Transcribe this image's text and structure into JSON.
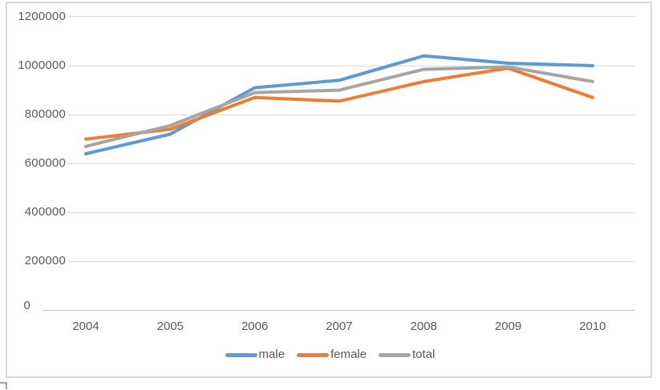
{
  "chart_data": {
    "type": "line",
    "title": "",
    "categories": [
      "2004",
      "2005",
      "2006",
      "2007",
      "2008",
      "2009",
      "2010"
    ],
    "series": [
      {
        "name": "male",
        "color": "#5B9BD5",
        "values": [
          640000,
          720000,
          910000,
          940000,
          1040000,
          1010000,
          1000000
        ]
      },
      {
        "name": "female",
        "color": "#ED7D31",
        "values": [
          700000,
          740000,
          870000,
          855000,
          935000,
          990000,
          870000
        ]
      },
      {
        "name": "total",
        "color": "#A5A5A5",
        "values": [
          670000,
          755000,
          890000,
          900000,
          985000,
          995000,
          935000
        ]
      }
    ],
    "yticks": [
      {
        "value": 0,
        "label": "0"
      },
      {
        "value": 200000,
        "label": "200000"
      },
      {
        "value": 400000,
        "label": "400000"
      },
      {
        "value": 600000,
        "label": "600000"
      },
      {
        "value": 800000,
        "label": "800000"
      },
      {
        "value": 1000000,
        "label": "1000000"
      },
      {
        "value": 1200000,
        "label": "1200000"
      }
    ],
    "ylim": [
      0,
      1200000
    ],
    "xlabel": "",
    "ylabel": "",
    "grid": true,
    "legend_position": "bottom"
  },
  "colors": {
    "gridline": "#D9D9D9",
    "axis_line": "#C6C6C6",
    "tick_label": "#595959",
    "frame_border": "#D9D9D9",
    "background": "#FFFFFF",
    "corner_mark": "#A6A6A6"
  }
}
